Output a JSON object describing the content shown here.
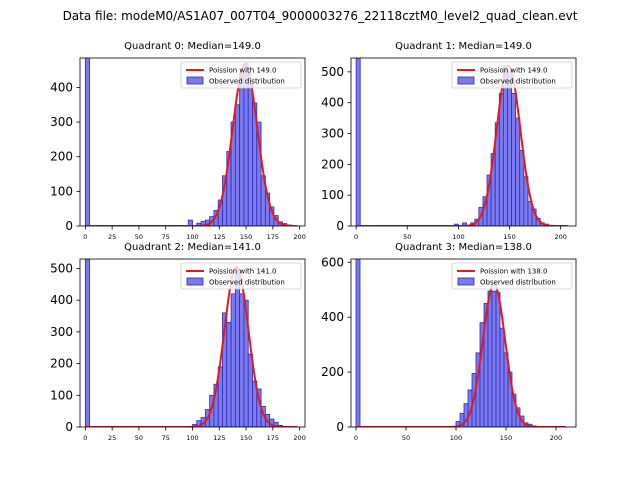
{
  "figure": {
    "title": "Data file: modeM0/AS1A07_007T04_9000003276_22118cztM0_level2_quad_clean.evt"
  },
  "colors": {
    "bar_fill": "#7b7bef",
    "bar_edge": "#2b2bb8",
    "fit_line": "#e31a1c",
    "axis": "#000000"
  },
  "chart_data": [
    {
      "type": "bar",
      "title": "Quadrant 0: Median=149.0",
      "legend": [
        "Poission with 149.0",
        "Observed distribution"
      ],
      "legend_position": "top-right",
      "xlim": [
        -5,
        205
      ],
      "ylim": [
        0,
        485
      ],
      "xticks": [
        0,
        25,
        50,
        75,
        100,
        125,
        150,
        175,
        200
      ],
      "yticks": [
        0,
        100,
        200,
        300,
        400
      ],
      "fit_mean": 149.0,
      "fit_scale": 465,
      "fit_sigma": 11.5,
      "fit_range": [
        0,
        198
      ],
      "bin_width": 4,
      "bins": [
        {
          "x": 0,
          "value": 485
        },
        {
          "x": 96,
          "value": 17
        },
        {
          "x": 104,
          "value": 8
        },
        {
          "x": 108,
          "value": 13
        },
        {
          "x": 112,
          "value": 17
        },
        {
          "x": 116,
          "value": 27
        },
        {
          "x": 120,
          "value": 45
        },
        {
          "x": 124,
          "value": 75
        },
        {
          "x": 128,
          "value": 145
        },
        {
          "x": 132,
          "value": 215
        },
        {
          "x": 136,
          "value": 300
        },
        {
          "x": 140,
          "value": 350
        },
        {
          "x": 144,
          "value": 440
        },
        {
          "x": 148,
          "value": 470
        },
        {
          "x": 152,
          "value": 410
        },
        {
          "x": 156,
          "value": 355
        },
        {
          "x": 160,
          "value": 300
        },
        {
          "x": 164,
          "value": 145
        },
        {
          "x": 168,
          "value": 95
        },
        {
          "x": 172,
          "value": 55
        },
        {
          "x": 176,
          "value": 30
        },
        {
          "x": 180,
          "value": 12
        },
        {
          "x": 184,
          "value": 7
        },
        {
          "x": 188,
          "value": 3
        }
      ]
    },
    {
      "type": "bar",
      "title": "Quadrant 1: Median=149.0",
      "legend": [
        "Poission with 149.0",
        "Observed distribution"
      ],
      "legend_position": "top-right",
      "xlim": [
        -5,
        215
      ],
      "ylim": [
        0,
        545
      ],
      "xticks": [
        0,
        50,
        100,
        150,
        200
      ],
      "yticks": [
        0,
        100,
        200,
        300,
        400,
        500
      ],
      "fit_mean": 149.0,
      "fit_scale": 520,
      "fit_sigma": 11.5,
      "fit_range": [
        0,
        207
      ],
      "bin_width": 4,
      "bins": [
        {
          "x": 0,
          "value": 545
        },
        {
          "x": 96,
          "value": 6
        },
        {
          "x": 104,
          "value": 10
        },
        {
          "x": 112,
          "value": 10
        },
        {
          "x": 116,
          "value": 22
        },
        {
          "x": 120,
          "value": 60
        },
        {
          "x": 124,
          "value": 95
        },
        {
          "x": 128,
          "value": 165
        },
        {
          "x": 132,
          "value": 235
        },
        {
          "x": 136,
          "value": 335
        },
        {
          "x": 140,
          "value": 430
        },
        {
          "x": 144,
          "value": 520
        },
        {
          "x": 148,
          "value": 500
        },
        {
          "x": 152,
          "value": 430
        },
        {
          "x": 156,
          "value": 350
        },
        {
          "x": 160,
          "value": 245
        },
        {
          "x": 164,
          "value": 160
        },
        {
          "x": 168,
          "value": 80
        },
        {
          "x": 172,
          "value": 55
        },
        {
          "x": 176,
          "value": 25
        },
        {
          "x": 180,
          "value": 10
        },
        {
          "x": 184,
          "value": 6
        }
      ]
    },
    {
      "type": "bar",
      "title": "Quadrant 2: Median=141.0",
      "legend": [
        "Poission with 141.0",
        "Observed distribution"
      ],
      "legend_position": "top-right",
      "xlim": [
        -5,
        205
      ],
      "ylim": [
        0,
        530
      ],
      "xticks": [
        0,
        25,
        50,
        75,
        100,
        125,
        150,
        175,
        200
      ],
      "yticks": [
        0,
        100,
        200,
        300,
        400,
        500
      ],
      "fit_mean": 141.0,
      "fit_scale": 505,
      "fit_sigma": 11.2,
      "fit_range": [
        0,
        198
      ],
      "bin_width": 4,
      "bins": [
        {
          "x": 0,
          "value": 530
        },
        {
          "x": 100,
          "value": 8
        },
        {
          "x": 104,
          "value": 20
        },
        {
          "x": 108,
          "value": 30
        },
        {
          "x": 112,
          "value": 55
        },
        {
          "x": 116,
          "value": 100
        },
        {
          "x": 120,
          "value": 135
        },
        {
          "x": 124,
          "value": 190
        },
        {
          "x": 128,
          "value": 360
        },
        {
          "x": 132,
          "value": 330
        },
        {
          "x": 136,
          "value": 420
        },
        {
          "x": 140,
          "value": 500
        },
        {
          "x": 144,
          "value": 420
        },
        {
          "x": 148,
          "value": 400
        },
        {
          "x": 152,
          "value": 230
        },
        {
          "x": 156,
          "value": 145
        },
        {
          "x": 160,
          "value": 120
        },
        {
          "x": 164,
          "value": 65
        },
        {
          "x": 168,
          "value": 40
        },
        {
          "x": 172,
          "value": 25
        },
        {
          "x": 176,
          "value": 15
        },
        {
          "x": 180,
          "value": 5
        }
      ]
    },
    {
      "type": "bar",
      "title": "Quadrant 3: Median=138.0",
      "legend": [
        "Poission with 138.0",
        "Observed distribution"
      ],
      "legend_position": "top-right",
      "xlim": [
        -5,
        220
      ],
      "ylim": [
        0,
        612
      ],
      "xticks": [
        0,
        50,
        100,
        150,
        200
      ],
      "yticks": [
        0,
        200,
        400,
        600
      ],
      "fit_mean": 138.0,
      "fit_scale": 520,
      "fit_sigma": 11.2,
      "fit_range": [
        0,
        210
      ],
      "bin_width": 4,
      "bins": [
        {
          "x": 0,
          "value": 612
        },
        {
          "x": 100,
          "value": 20
        },
        {
          "x": 104,
          "value": 50
        },
        {
          "x": 108,
          "value": 85
        },
        {
          "x": 112,
          "value": 135
        },
        {
          "x": 116,
          "value": 195
        },
        {
          "x": 120,
          "value": 270
        },
        {
          "x": 124,
          "value": 380
        },
        {
          "x": 128,
          "value": 450
        },
        {
          "x": 132,
          "value": 495
        },
        {
          "x": 136,
          "value": 495
        },
        {
          "x": 140,
          "value": 490
        },
        {
          "x": 144,
          "value": 360
        },
        {
          "x": 148,
          "value": 270
        },
        {
          "x": 152,
          "value": 200
        },
        {
          "x": 156,
          "value": 120
        },
        {
          "x": 160,
          "value": 70
        },
        {
          "x": 164,
          "value": 40
        },
        {
          "x": 168,
          "value": 15
        },
        {
          "x": 172,
          "value": 10
        },
        {
          "x": 176,
          "value": 4
        }
      ]
    }
  ]
}
